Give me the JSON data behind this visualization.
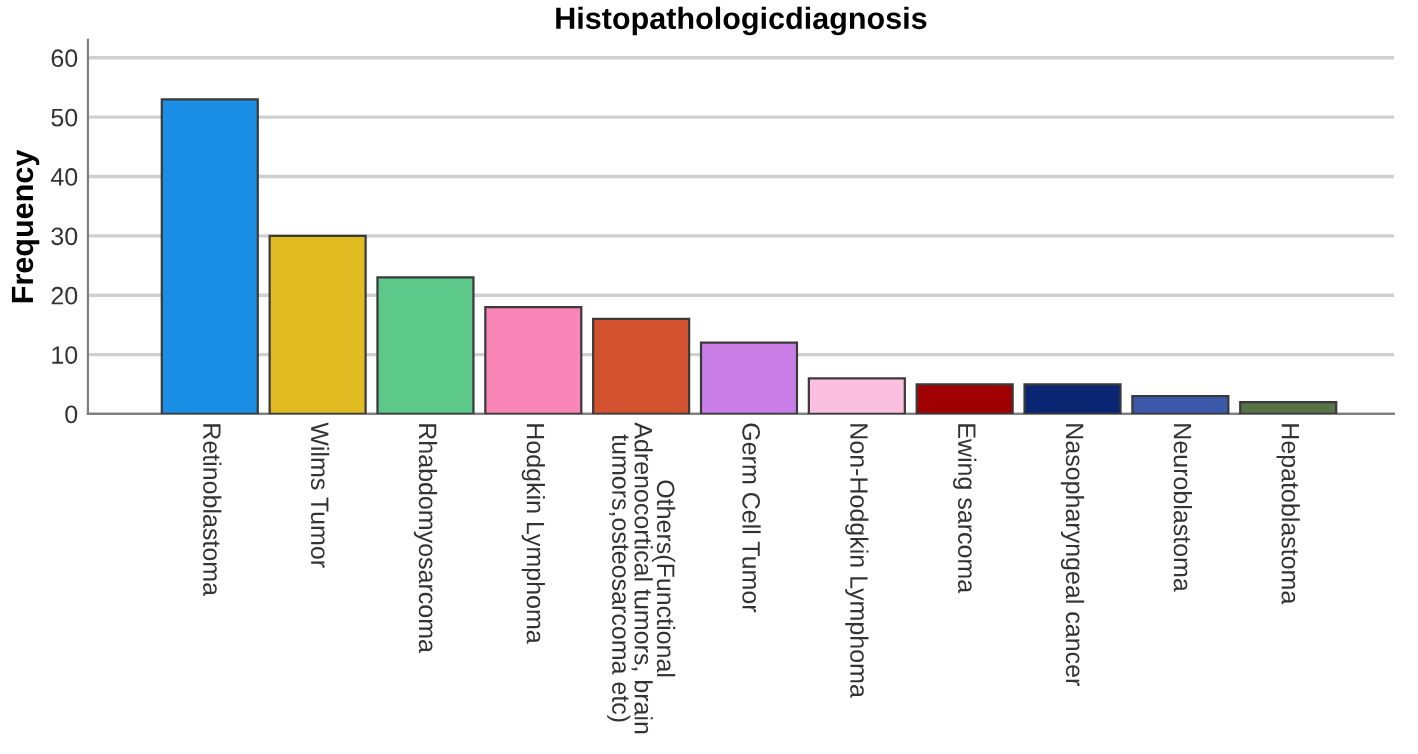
{
  "chart_data": {
    "type": "bar",
    "title": "Histopathologicdiagnosis",
    "ylabel": "Frequency",
    "categories": [
      "Retinoblastoma",
      "Wilms Tumor",
      "Rhabdomyosarcoma",
      "Hodgkin Lymphoma",
      "Others(Functional\nAdrenocortical tumors, brain\ntumors,osteosarcoma etc)",
      "Germ Cell Tumor",
      "Non-Hodgkin Lymphoma",
      "Ewing sarcoma",
      "Nasopharyngeal cancer",
      "Neuroblastoma",
      "Hepatoblastoma"
    ],
    "values": [
      53,
      30,
      23,
      18,
      16,
      12,
      6,
      5,
      5,
      3,
      2
    ],
    "colors": [
      "#1a8ee5",
      "#e0bb22",
      "#5cc98a",
      "#f984b6",
      "#d4512f",
      "#c97de6",
      "#fbc0e0",
      "#a00000",
      "#0a2673",
      "#3c58a8",
      "#5a7346"
    ],
    "ylim": [
      0,
      63
    ],
    "yticks": [
      0,
      10,
      20,
      30,
      40,
      50,
      60
    ],
    "grid": "y",
    "legend": false
  }
}
